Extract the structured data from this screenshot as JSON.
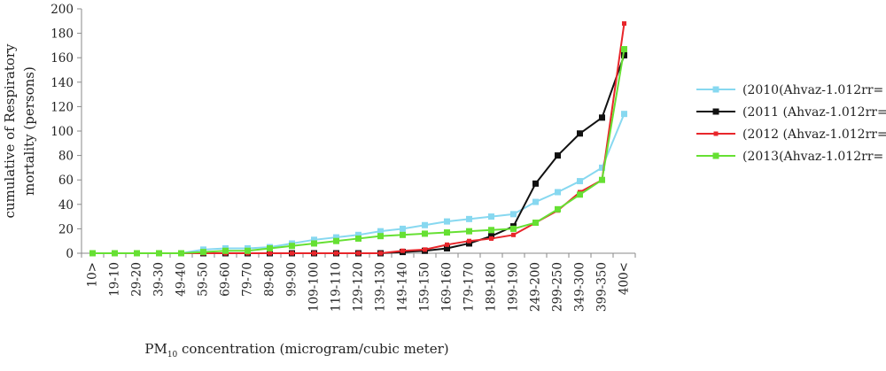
{
  "chart_data": {
    "type": "line",
    "title": "",
    "xlabel": {
      "prefix": "PM",
      "subscript": "10",
      "suffix": " concentration (microgram/cubic meter)"
    },
    "ylabel": {
      "line1": "cumulative of Respiratory",
      "line2": "mortality (persons)"
    },
    "ylim": [
      0,
      200
    ],
    "yticks": [
      0,
      20,
      40,
      60,
      80,
      100,
      120,
      140,
      160,
      180,
      200
    ],
    "grid": false,
    "legend_position": "right",
    "categories": [
      "10>",
      "19-10",
      "29-20",
      "39-30",
      "49-40",
      "59-50",
      "69-60",
      "79-70",
      "89-80",
      "99-90",
      "109-100",
      "119-110",
      "129-120",
      "139-130",
      "149-140",
      "159-150",
      "169-160",
      "179-170",
      "189-180",
      "199-190",
      "249-200",
      "299-250",
      "349-300",
      "399-350",
      "400<"
    ],
    "series": [
      {
        "name": "(2010(Ahvaz-1.012rr=",
        "color": "#87d8f0",
        "marker": "square",
        "values": [
          0,
          0,
          0,
          0,
          0,
          3,
          4,
          4,
          5,
          8,
          11,
          13,
          15,
          18,
          20,
          23,
          26,
          28,
          30,
          32,
          42,
          50,
          59,
          70,
          114
        ]
      },
      {
        "name": "(2011 (Ahvaz-1.012rr=",
        "color": "#111111",
        "marker": "square",
        "values": [
          0,
          0,
          0,
          0,
          0,
          0,
          0,
          0,
          0,
          0,
          0,
          0,
          0,
          0,
          1,
          2,
          4,
          8,
          14,
          22,
          57,
          80,
          98,
          111,
          162
        ]
      },
      {
        "name": "(2012 (Ahvaz-1.012rr=",
        "color": "#e8262b",
        "marker": "small-square",
        "values": [
          0,
          0,
          0,
          0,
          0,
          0,
          0,
          0,
          0,
          0,
          0,
          0,
          0,
          0,
          2,
          3,
          7,
          10,
          12,
          15,
          25,
          35,
          50,
          60,
          188
        ]
      },
      {
        "name": "(2013(Ahvaz-1.012rr=",
        "color": "#66e033",
        "marker": "square",
        "values": [
          0,
          0,
          0,
          0,
          0,
          1,
          2,
          2,
          4,
          6,
          8,
          10,
          12,
          14,
          15,
          16,
          17,
          18,
          19,
          20,
          25,
          36,
          48,
          60,
          167
        ]
      }
    ]
  }
}
